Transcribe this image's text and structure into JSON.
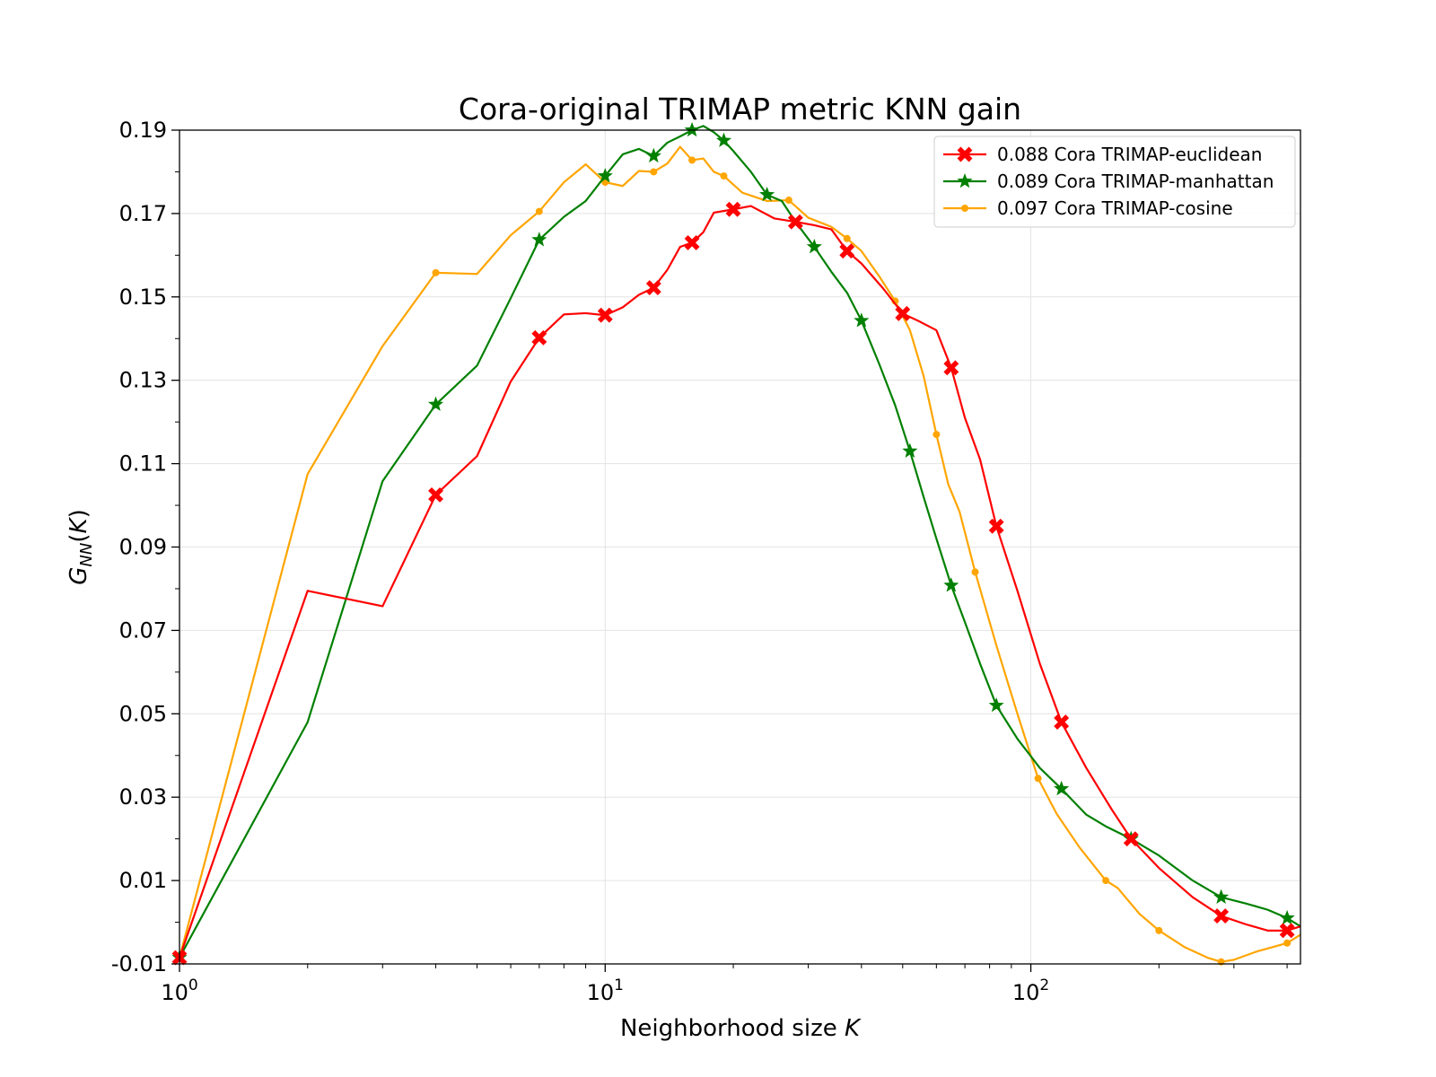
{
  "chart_data": {
    "type": "line",
    "title": "Cora-original TRIMAP metric KNN gain",
    "xlabel": "Neighborhood size K",
    "ylabel": "G_NN(K)",
    "xscale": "log",
    "xlim": [
      1,
      430
    ],
    "ylim": [
      -0.01,
      0.19
    ],
    "yticks": [
      "0.19",
      "0.17",
      "0.15",
      "0.13",
      "0.11",
      "0.09",
      "0.07",
      "0.05",
      "0.03",
      "0.01",
      "-0.01"
    ],
    "xticks": [
      "10^0",
      "10^1",
      "10^2"
    ],
    "grid": true,
    "legend_position": "top-right",
    "series": [
      {
        "name": "0.088 Cora TRIMAP-euclidean",
        "color": "#ff0000",
        "marker": "X",
        "x": [
          1,
          2,
          3,
          4,
          5,
          6,
          7,
          8,
          9,
          10,
          11,
          12,
          13,
          14,
          15,
          16,
          17,
          18,
          20,
          22,
          25,
          28,
          31,
          34,
          37,
          40,
          45,
          50,
          55,
          60,
          65,
          70,
          76,
          83,
          93,
          105,
          118,
          135,
          155,
          172,
          200,
          240,
          280,
          320,
          360,
          400,
          430
        ],
        "y": [
          -0.0085,
          0.0795,
          0.0758,
          0.1025,
          0.1118,
          0.1297,
          0.1402,
          0.1458,
          0.1461,
          0.1456,
          0.1475,
          0.1505,
          0.1522,
          0.1565,
          0.162,
          0.163,
          0.1655,
          0.1702,
          0.171,
          0.1718,
          0.1688,
          0.168,
          0.1672,
          0.1662,
          0.161,
          0.158,
          0.152,
          0.146,
          0.144,
          0.142,
          0.133,
          0.121,
          0.111,
          0.095,
          0.0795,
          0.062,
          0.048,
          0.037,
          0.027,
          0.02,
          0.013,
          0.006,
          0.0015,
          -0.0005,
          -0.002,
          -0.002,
          -0.001
        ]
      },
      {
        "name": "0.089 Cora TRIMAP-manhattan",
        "color": "#008000",
        "marker": "*",
        "x": [
          1,
          2,
          3,
          4,
          5,
          6,
          7,
          8,
          9,
          10,
          11,
          12,
          13,
          14,
          15,
          16,
          17,
          18,
          19,
          20,
          22,
          24,
          26,
          28,
          31,
          34,
          37,
          40,
          44,
          48,
          52,
          56,
          60,
          65,
          70,
          76,
          83,
          93,
          105,
          118,
          135,
          150,
          172,
          200,
          240,
          280,
          320,
          360,
          400,
          430
        ],
        "y": [
          -0.0085,
          0.048,
          0.1058,
          0.1242,
          0.1335,
          0.1497,
          0.1637,
          0.1692,
          0.173,
          0.179,
          0.1842,
          0.1855,
          0.1838,
          0.187,
          0.1885,
          0.19,
          0.191,
          0.1895,
          0.1875,
          0.185,
          0.18,
          0.1745,
          0.173,
          0.168,
          0.162,
          0.156,
          0.151,
          0.1443,
          0.134,
          0.124,
          0.113,
          0.102,
          0.092,
          0.0808,
          0.072,
          0.062,
          0.052,
          0.044,
          0.037,
          0.032,
          0.0258,
          0.023,
          0.02,
          0.016,
          0.01,
          0.006,
          0.0045,
          0.003,
          0.001,
          -0.001
        ]
      },
      {
        "name": "0.097 Cora TRIMAP-cosine",
        "color": "#ffa500",
        "marker": "o",
        "x": [
          1,
          2,
          3,
          4,
          5,
          6,
          7,
          8,
          9,
          10,
          11,
          12,
          13,
          14,
          15,
          16,
          17,
          18,
          19,
          21,
          24,
          27,
          30,
          34,
          37,
          40,
          44,
          48,
          52,
          56,
          60,
          64,
          68,
          74,
          83,
          93,
          104,
          115,
          130,
          150,
          160,
          180,
          200,
          230,
          260,
          280,
          300,
          340,
          400,
          430
        ],
        "y": [
          -0.0085,
          0.1075,
          0.1382,
          0.1558,
          0.1555,
          0.1648,
          0.1705,
          0.1775,
          0.1818,
          0.1775,
          0.1766,
          0.1802,
          0.18,
          0.182,
          0.186,
          0.1828,
          0.1832,
          0.18,
          0.179,
          0.175,
          0.173,
          0.1732,
          0.169,
          0.1668,
          0.164,
          0.161,
          0.155,
          0.149,
          0.142,
          0.131,
          0.117,
          0.105,
          0.0985,
          0.084,
          0.0664,
          0.05,
          0.0345,
          0.026,
          0.018,
          0.01,
          0.0082,
          0.002,
          -0.002,
          -0.006,
          -0.0085,
          -0.0095,
          -0.009,
          -0.007,
          -0.005,
          -0.003
        ]
      }
    ]
  }
}
